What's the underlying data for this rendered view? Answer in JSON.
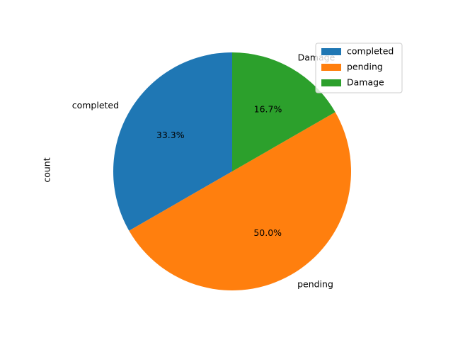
{
  "chart_data": {
    "type": "pie",
    "ylabel": "count",
    "slices": [
      {
        "label": "completed",
        "value": 33.3,
        "pct_text": "33.3%",
        "color": "#1f77b4"
      },
      {
        "label": "pending",
        "value": 50.0,
        "pct_text": "50.0%",
        "color": "#ff7f0e"
      },
      {
        "label": "Damage",
        "value": 16.7,
        "pct_text": "16.7%",
        "color": "#2ca02c"
      }
    ],
    "start_angle": 90,
    "direction": "counterclockwise",
    "legend": {
      "position": "upper-right",
      "entries": [
        "completed",
        "pending",
        "Damage"
      ]
    }
  }
}
